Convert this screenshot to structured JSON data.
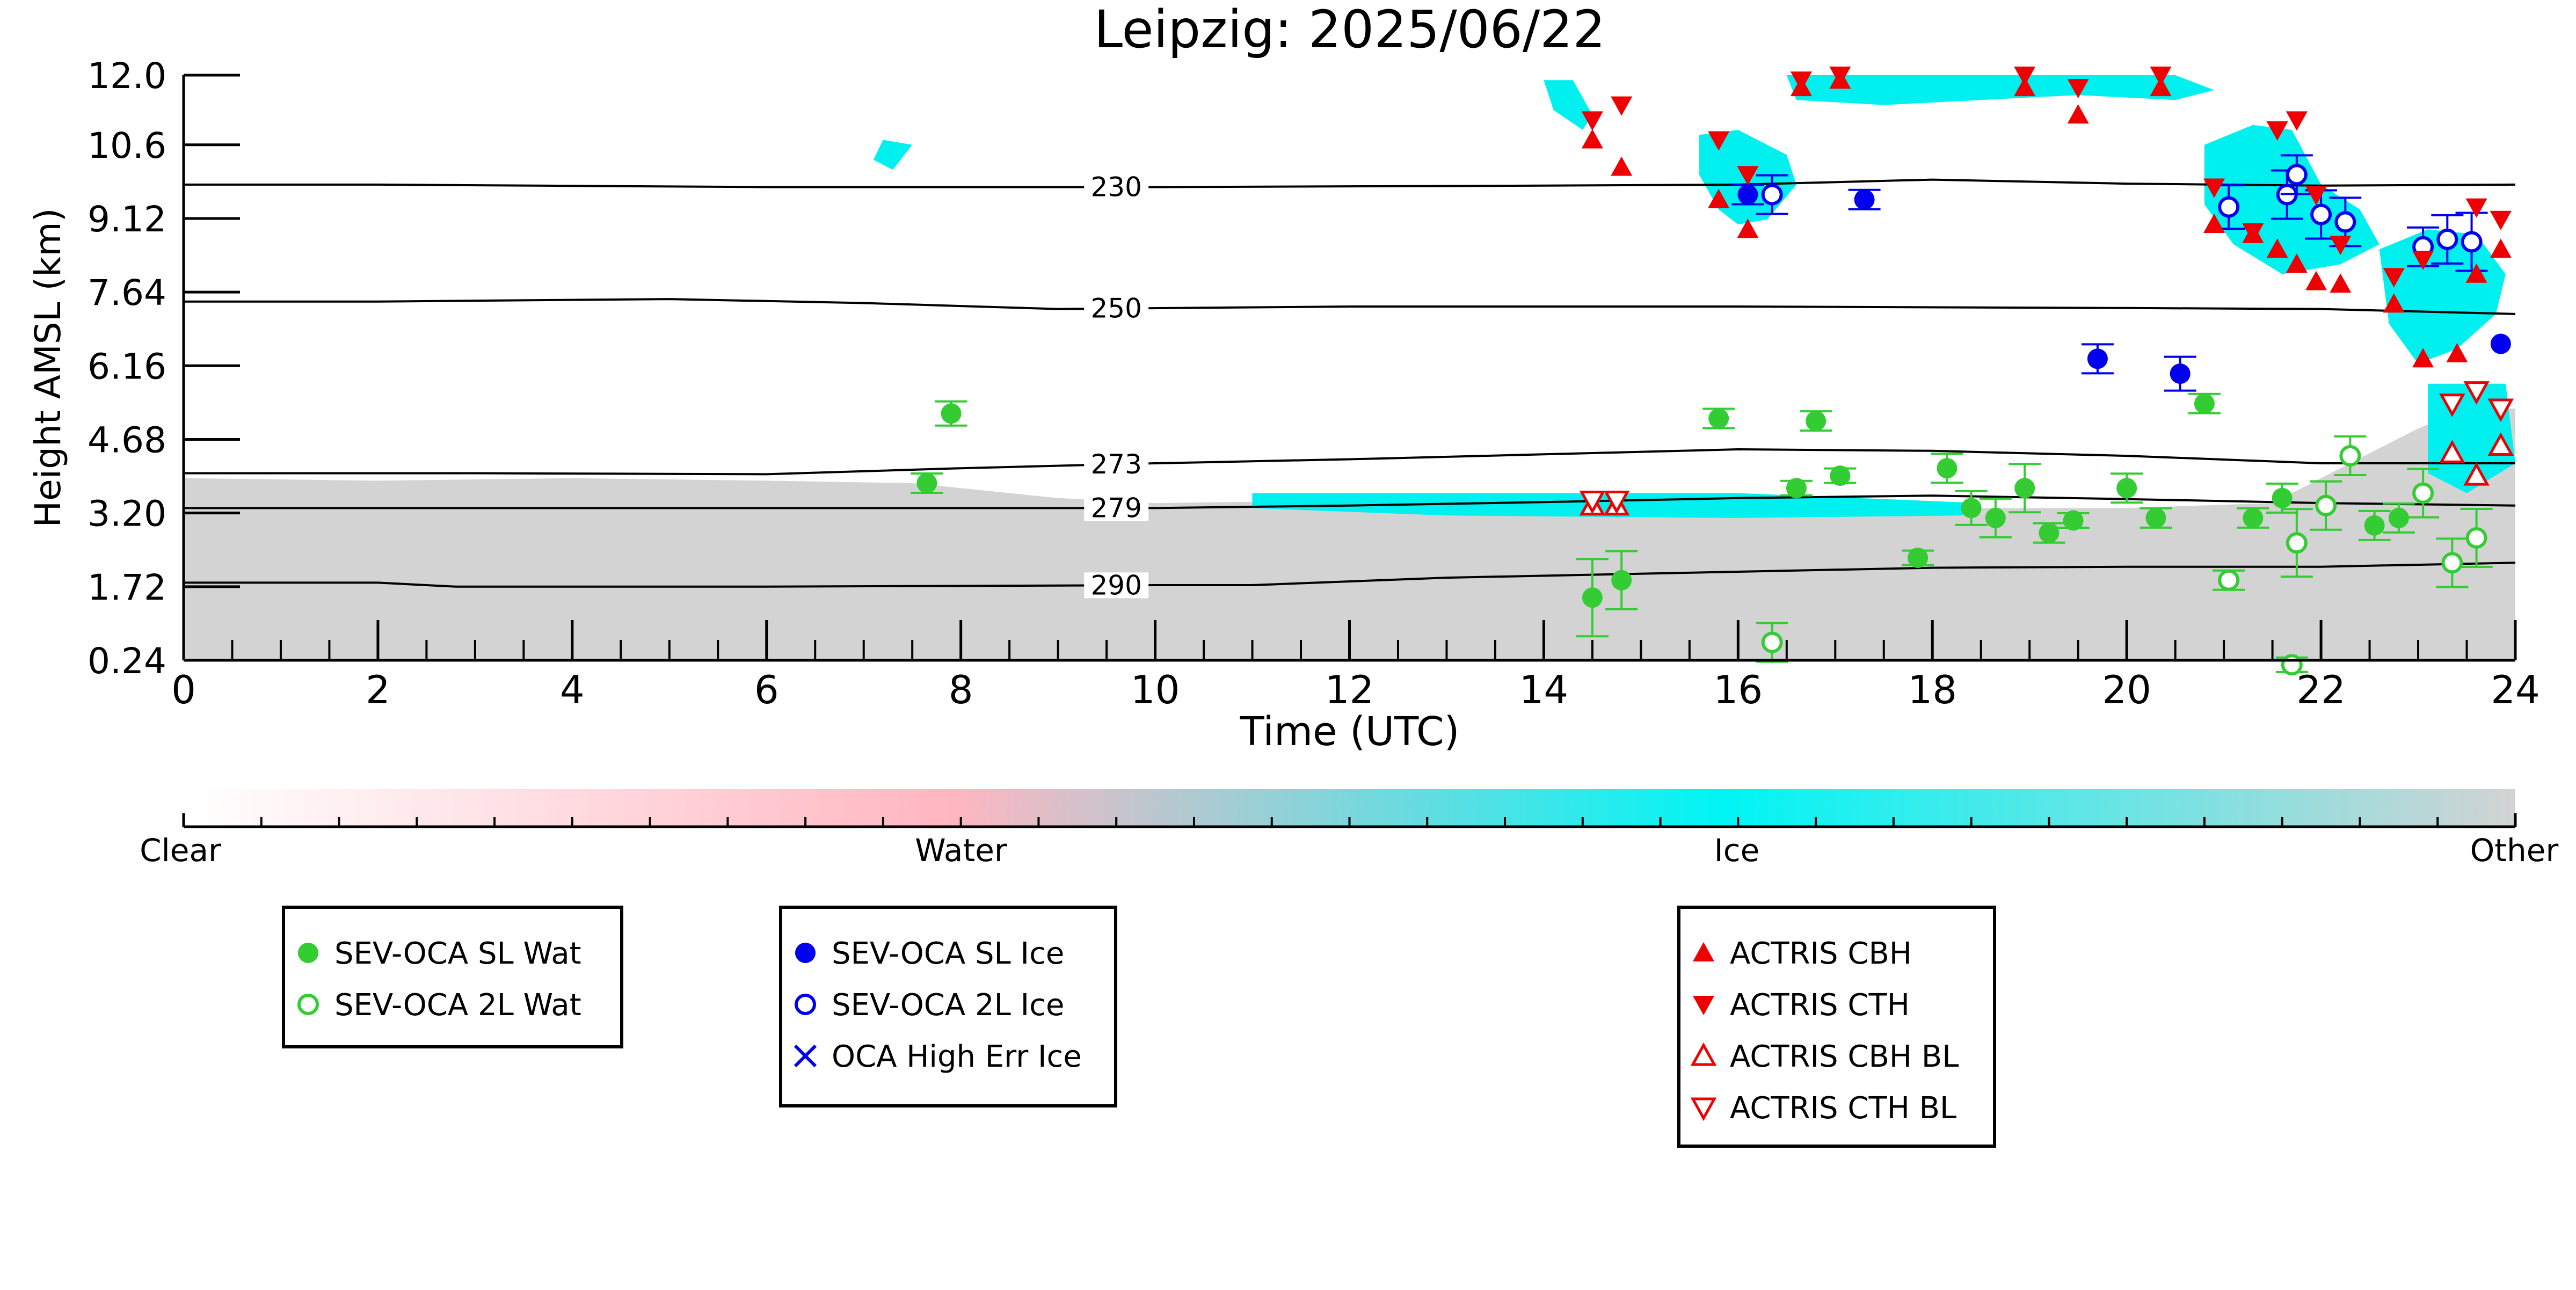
{
  "chart_data": {
    "type": "scatter",
    "title": "Leipzig: 2025/06/22",
    "xlabel": "Time (UTC)",
    "ylabel": "Height AMSL (km)",
    "xlim": [
      0,
      24
    ],
    "ylim": [
      0.24,
      12.0
    ],
    "xticks": [
      0,
      2,
      4,
      6,
      8,
      10,
      12,
      14,
      16,
      18,
      20,
      22,
      24
    ],
    "xtick_labels": [
      "0",
      "2",
      "4",
      "6",
      "8",
      "10",
      "12",
      "14",
      "16",
      "18",
      "20",
      "22",
      "24"
    ],
    "yticks": [
      0.24,
      1.72,
      3.2,
      4.68,
      6.16,
      7.64,
      9.12,
      10.6,
      12.0
    ],
    "ytick_labels": [
      "0.24",
      "1.72",
      "3.20",
      "4.68",
      "6.16",
      "7.64",
      "9.12",
      "10.6",
      "12.0"
    ],
    "colorbar": {
      "labels": [
        "Clear",
        "Water",
        "Ice",
        "Other"
      ],
      "colors": [
        "#ffffff",
        "#ffb6c1",
        "#00f5f5",
        "#d3d3d3"
      ]
    },
    "colors": {
      "water": "#33cc33",
      "ice": "#0000ee",
      "actris": "#ee0000",
      "cloud_ice": "#00f0f0",
      "cloud_other": "#d3d3d3",
      "contour": "#000000"
    },
    "contours": [
      {
        "label": "230",
        "points": [
          [
            0,
            9.8
          ],
          [
            2,
            9.8
          ],
          [
            6,
            9.75
          ],
          [
            10,
            9.75
          ],
          [
            14,
            9.78
          ],
          [
            16,
            9.8
          ],
          [
            18,
            9.9
          ],
          [
            20,
            9.82
          ],
          [
            22,
            9.78
          ],
          [
            24,
            9.8
          ]
        ]
      },
      {
        "label": "250",
        "points": [
          [
            0,
            7.45
          ],
          [
            2,
            7.45
          ],
          [
            5,
            7.5
          ],
          [
            7,
            7.42
          ],
          [
            9,
            7.3
          ],
          [
            12,
            7.35
          ],
          [
            16,
            7.35
          ],
          [
            20,
            7.32
          ],
          [
            22,
            7.3
          ],
          [
            24,
            7.2
          ]
        ]
      },
      {
        "label": "273",
        "points": [
          [
            0,
            4.0
          ],
          [
            3,
            4.0
          ],
          [
            6,
            3.98
          ],
          [
            8,
            4.1
          ],
          [
            10,
            4.2
          ],
          [
            12,
            4.28
          ],
          [
            14,
            4.38
          ],
          [
            16,
            4.48
          ],
          [
            18,
            4.45
          ],
          [
            20,
            4.35
          ],
          [
            22,
            4.2
          ],
          [
            24,
            4.2
          ]
        ]
      },
      {
        "label": "279",
        "points": [
          [
            0,
            3.3
          ],
          [
            4,
            3.3
          ],
          [
            6,
            3.3
          ],
          [
            8,
            3.3
          ],
          [
            10,
            3.3
          ],
          [
            12,
            3.35
          ],
          [
            14,
            3.42
          ],
          [
            16,
            3.5
          ],
          [
            18,
            3.55
          ],
          [
            20,
            3.48
          ],
          [
            22,
            3.4
          ],
          [
            24,
            3.35
          ]
        ]
      },
      {
        "label": "290",
        "points": [
          [
            0,
            1.8
          ],
          [
            2,
            1.8
          ],
          [
            2.8,
            1.72
          ],
          [
            6,
            1.72
          ],
          [
            10,
            1.75
          ],
          [
            11,
            1.75
          ],
          [
            13,
            1.9
          ],
          [
            16,
            2.02
          ],
          [
            18,
            2.1
          ],
          [
            20,
            2.12
          ],
          [
            22,
            2.12
          ],
          [
            24,
            2.2
          ]
        ]
      }
    ],
    "series": [
      {
        "name": "SEV-OCA SL Wat",
        "marker": "filled-circle",
        "color": "#33cc33",
        "points": [
          [
            7.65,
            3.8,
            0.2
          ],
          [
            7.9,
            5.2,
            0.25
          ],
          [
            14.5,
            1.5,
            0.8
          ],
          [
            14.8,
            1.85,
            0.6
          ],
          [
            15.8,
            5.1,
            0.2
          ],
          [
            16.6,
            3.7,
            0.15
          ],
          [
            16.8,
            5.05,
            0.2
          ],
          [
            17.05,
            3.95,
            0.15
          ],
          [
            17.85,
            2.3,
            0.15
          ],
          [
            18.15,
            4.1,
            0.3
          ],
          [
            18.4,
            3.3,
            0.35
          ],
          [
            18.65,
            3.1,
            0.4
          ],
          [
            18.95,
            3.7,
            0.5
          ],
          [
            19.2,
            2.8,
            0.2
          ],
          [
            19.45,
            3.05,
            0.15
          ],
          [
            20.0,
            3.7,
            0.3
          ],
          [
            20.3,
            3.1,
            0.2
          ],
          [
            20.8,
            5.4,
            0.2
          ],
          [
            21.3,
            3.1,
            0.2
          ],
          [
            21.6,
            3.5,
            0.3
          ],
          [
            22.55,
            2.95,
            0.3
          ],
          [
            22.8,
            3.1,
            0.3
          ]
        ]
      },
      {
        "name": "SEV-OCA 2L Wat",
        "marker": "open-circle",
        "color": "#33cc33",
        "points": [
          [
            16.35,
            0.6,
            0.4
          ],
          [
            21.05,
            1.85,
            0.2
          ],
          [
            21.7,
            0.15,
            0.15
          ],
          [
            21.75,
            2.6,
            0.7
          ],
          [
            22.05,
            3.35,
            0.5
          ],
          [
            22.3,
            4.35,
            0.4
          ],
          [
            23.05,
            3.6,
            0.5
          ],
          [
            23.35,
            2.2,
            0.5
          ],
          [
            23.6,
            2.7,
            0.6
          ]
        ]
      },
      {
        "name": "SEV-OCA SL Ice",
        "marker": "filled-circle",
        "color": "#0000ee",
        "points": [
          [
            16.1,
            9.6,
            0.2
          ],
          [
            17.3,
            9.5,
            0.2
          ],
          [
            19.7,
            6.3,
            0.3
          ],
          [
            20.55,
            6.0,
            0.35
          ],
          [
            23.85,
            6.6,
            0.0
          ]
        ]
      },
      {
        "name": "SEV-OCA 2L Ice",
        "marker": "open-circle",
        "color": "#0000ee",
        "points": [
          [
            16.35,
            9.6,
            0.4
          ],
          [
            21.05,
            9.35,
            0.45
          ],
          [
            21.65,
            9.6,
            0.5
          ],
          [
            21.75,
            10.0,
            0.4
          ],
          [
            22.0,
            9.2,
            0.5
          ],
          [
            22.25,
            9.05,
            0.5
          ],
          [
            23.05,
            8.55,
            0.4
          ],
          [
            23.3,
            8.7,
            0.5
          ],
          [
            23.55,
            8.65,
            0.6
          ]
        ]
      },
      {
        "name": "OCA High Err Ice",
        "marker": "cross",
        "color": "#0000ee",
        "points": []
      },
      {
        "name": "ACTRIS CBH",
        "marker": "filled-triangle-up",
        "color": "#ee0000",
        "points": [
          [
            14.5,
            10.7
          ],
          [
            14.8,
            10.15
          ],
          [
            15.8,
            9.5
          ],
          [
            16.1,
            8.9
          ],
          [
            16.65,
            11.75
          ],
          [
            17.05,
            11.9
          ],
          [
            18.95,
            11.75
          ],
          [
            19.5,
            11.2
          ],
          [
            20.35,
            11.75
          ],
          [
            20.9,
            9.0
          ],
          [
            21.3,
            8.8
          ],
          [
            21.55,
            8.5
          ],
          [
            21.75,
            8.2
          ],
          [
            21.95,
            7.85
          ],
          [
            22.2,
            7.8
          ],
          [
            22.75,
            7.4
          ],
          [
            23.05,
            6.3
          ],
          [
            23.4,
            6.4
          ],
          [
            23.6,
            8.0
          ],
          [
            23.85,
            8.5
          ]
        ]
      },
      {
        "name": "ACTRIS CTH",
        "marker": "filled-triangle-down",
        "color": "#ee0000",
        "points": [
          [
            14.5,
            11.1
          ],
          [
            14.8,
            11.4
          ],
          [
            15.8,
            10.7
          ],
          [
            16.1,
            10.0
          ],
          [
            16.65,
            11.9
          ],
          [
            17.05,
            12.0
          ],
          [
            18.95,
            12.0
          ],
          [
            19.5,
            11.75
          ],
          [
            20.35,
            12.0
          ],
          [
            20.9,
            9.75
          ],
          [
            21.3,
            8.85
          ],
          [
            21.55,
            10.9
          ],
          [
            21.75,
            11.1
          ],
          [
            21.95,
            9.6
          ],
          [
            22.2,
            8.6
          ],
          [
            22.75,
            7.95
          ],
          [
            23.05,
            8.3
          ],
          [
            23.6,
            9.35
          ],
          [
            23.85,
            9.1
          ]
        ]
      },
      {
        "name": "ACTRIS CBH BL",
        "marker": "open-triangle-up",
        "color": "#ee0000",
        "points": [
          [
            14.5,
            3.35
          ],
          [
            14.75,
            3.35
          ],
          [
            23.35,
            4.4
          ],
          [
            23.6,
            3.95
          ],
          [
            23.85,
            4.55
          ]
        ]
      },
      {
        "name": "ACTRIS CTH BL",
        "marker": "open-triangle-down",
        "color": "#ee0000",
        "points": [
          [
            14.5,
            3.45
          ],
          [
            14.75,
            3.45
          ],
          [
            23.35,
            5.4
          ],
          [
            23.6,
            5.65
          ],
          [
            23.85,
            5.3
          ]
        ]
      }
    ],
    "legends": [
      {
        "entries": [
          "SEV-OCA SL Wat",
          "SEV-OCA 2L Wat"
        ]
      },
      {
        "entries": [
          "SEV-OCA SL Ice",
          "SEV-OCA 2L Ice",
          "OCA High Err Ice"
        ]
      },
      {
        "entries": [
          "ACTRIS CBH",
          "ACTRIS CTH",
          "ACTRIS CBH BL",
          "ACTRIS CTH BL"
        ]
      }
    ]
  }
}
